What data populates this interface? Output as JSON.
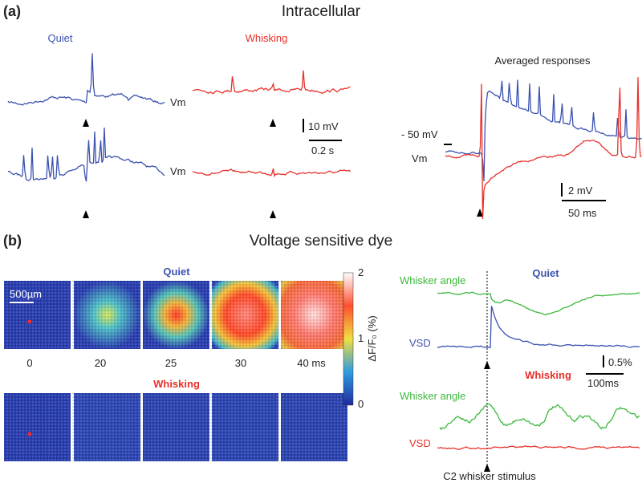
{
  "panel_a": {
    "label": "(a)",
    "title": "Intracellular",
    "quiet": "Quiet",
    "whisking": "Whisking",
    "vm_top": "Vm",
    "vm_bottom": "Vm",
    "scale_v": "10 mV",
    "scale_t": "0.2 s",
    "averaged_title": "Averaged responses",
    "level": "- 50 mV",
    "vm_avg": "Vm",
    "avg_scale_v": "2 mV",
    "avg_scale_t": "50 ms"
  },
  "panel_b": {
    "label": "(b)",
    "title": "Voltage sensitive dye",
    "quiet": "Quiet",
    "whisking": "Whisking",
    "scale_bar": "500µm",
    "times": [
      "0",
      "20",
      "25",
      "30",
      "40 ms"
    ],
    "colorbar_ticks": [
      "2",
      "1",
      "0"
    ],
    "colorbar_label": "ΔF/F₀ (%)",
    "traces": {
      "quiet": "Quiet",
      "whisking": "Whisking",
      "angle_top": "Whisker angle",
      "angle_bottom": "Whisker angle",
      "vsd_top": "VSD",
      "vsd_bottom": "VSD",
      "scale_v": "0.5%",
      "scale_t": "100ms",
      "stimulus": "C2 whisker stimulus"
    }
  }
}
